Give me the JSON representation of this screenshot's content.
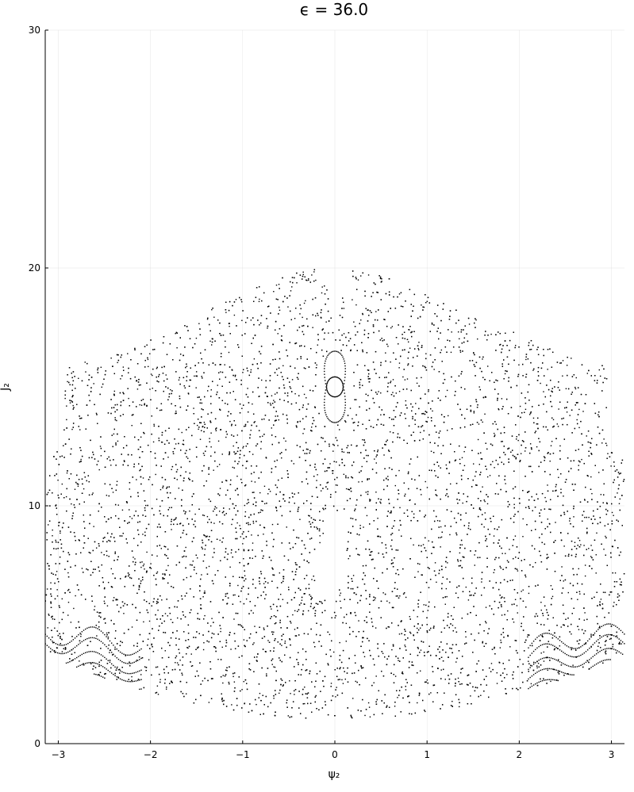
{
  "chart_data": {
    "type": "scatter",
    "title": "ϵ = 36.0",
    "xlabel": "ψ₂",
    "ylabel": "J₂",
    "xlim": [
      -3.14159,
      3.14159
    ],
    "ylim": [
      0,
      30
    ],
    "xticks": [
      -3,
      -2,
      -1,
      0,
      1,
      2,
      3
    ],
    "xtick_labels": [
      "−3",
      "−2",
      "−1",
      "0",
      "1",
      "2",
      "3"
    ],
    "yticks": [
      0,
      10,
      20,
      30
    ],
    "ytick_labels": [
      "0",
      "10",
      "20",
      "30"
    ],
    "grid": true,
    "legend": "none",
    "marker_color": "#000000",
    "series": [
      {
        "kind": "chaotic-sea",
        "region": {
          "lower_boundary": "1 + 0.28*psi^2",
          "upper_boundary_points": [
            [
              -3.14,
              15.7
            ],
            [
              -2.9,
              15.8
            ],
            [
              -2.5,
              16.3
            ],
            [
              -2.0,
              17.0
            ],
            [
              -1.5,
              18.0
            ],
            [
              -1.0,
              19.0
            ],
            [
              -0.5,
              19.7
            ],
            [
              -0.2,
              20.0
            ],
            [
              0,
              18.4
            ],
            [
              0.2,
              20.0
            ],
            [
              0.5,
              19.7
            ],
            [
              1.0,
              18.9
            ],
            [
              1.5,
              18.0
            ],
            [
              2.0,
              17.2
            ],
            [
              2.5,
              16.3
            ],
            [
              3.0,
              15.8
            ],
            [
              3.14,
              15.7
            ]
          ],
          "left_notch": {
            "psi_max": -2.95,
            "j_min": 12.3,
            "j_max": 15.7
          },
          "right_notch": {
            "psi_min": 2.95,
            "j_min": 12.3,
            "j_max": 15.7
          },
          "holes": [
            {
              "center": [
                0,
                15.0
              ],
              "rx": 0.2,
              "ry": 1.55
            },
            {
              "psi_min": -0.12,
              "psi_max": 0.12,
              "j_min": 6.5,
              "j_max": 9.8
            }
          ]
        },
        "point_count": 9000
      },
      {
        "kind": "island-outer",
        "center": [
          0,
          15.0
        ],
        "a": 0.17,
        "b": 1.5,
        "pinched": true
      },
      {
        "kind": "island-inner",
        "center": [
          0,
          15.0
        ],
        "a": 0.09,
        "b": 0.42
      },
      {
        "kind": "rotational-curves",
        "curves": [
          {
            "center": 2.5,
            "amp": 0.12
          },
          {
            "center": 2.9,
            "amp": 0.18
          },
          {
            "center": 3.3,
            "amp": 0.25
          },
          {
            "center": 3.7,
            "amp": 0.32
          },
          {
            "center": 4.2,
            "amp": 0.4
          },
          {
            "center": 4.6,
            "amp": 0.45
          }
        ]
      }
    ]
  }
}
